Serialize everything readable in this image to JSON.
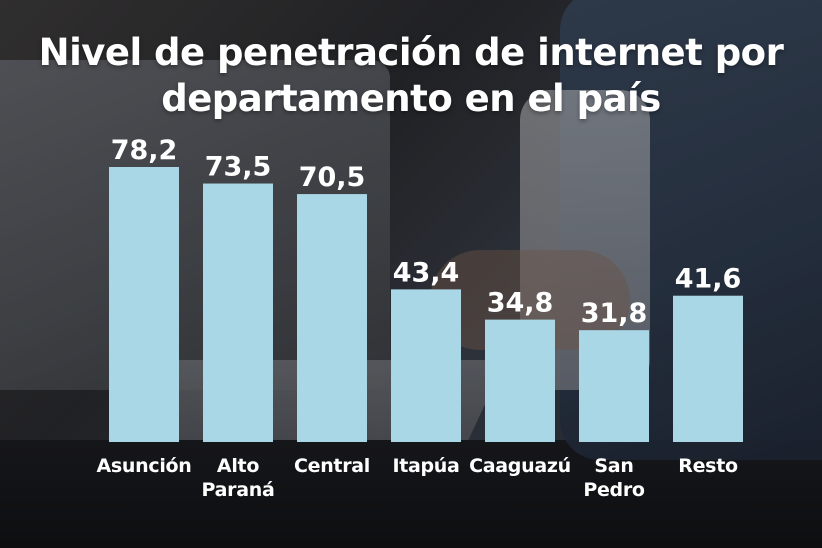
{
  "chart_data": {
    "type": "bar",
    "title": "Nivel de penetración de internet por departamento en el país",
    "categories": [
      "Asunción",
      "Alto\nParaná",
      "Central",
      "Itapúa",
      "Caaguazú",
      "San\nPedro",
      "Resto"
    ],
    "values": [
      78.2,
      73.5,
      70.5,
      43.4,
      34.8,
      31.8,
      41.6
    ],
    "value_labels": [
      "78,2",
      "73,5",
      "70,5",
      "43,4",
      "34,8",
      "31,8",
      "41,6"
    ],
    "xlabel": "",
    "ylabel": "",
    "ylim": [
      0,
      80
    ],
    "grid": false,
    "legend": "none",
    "colors": {
      "bar": "#a9d7e6",
      "text": "#ffffff"
    }
  }
}
